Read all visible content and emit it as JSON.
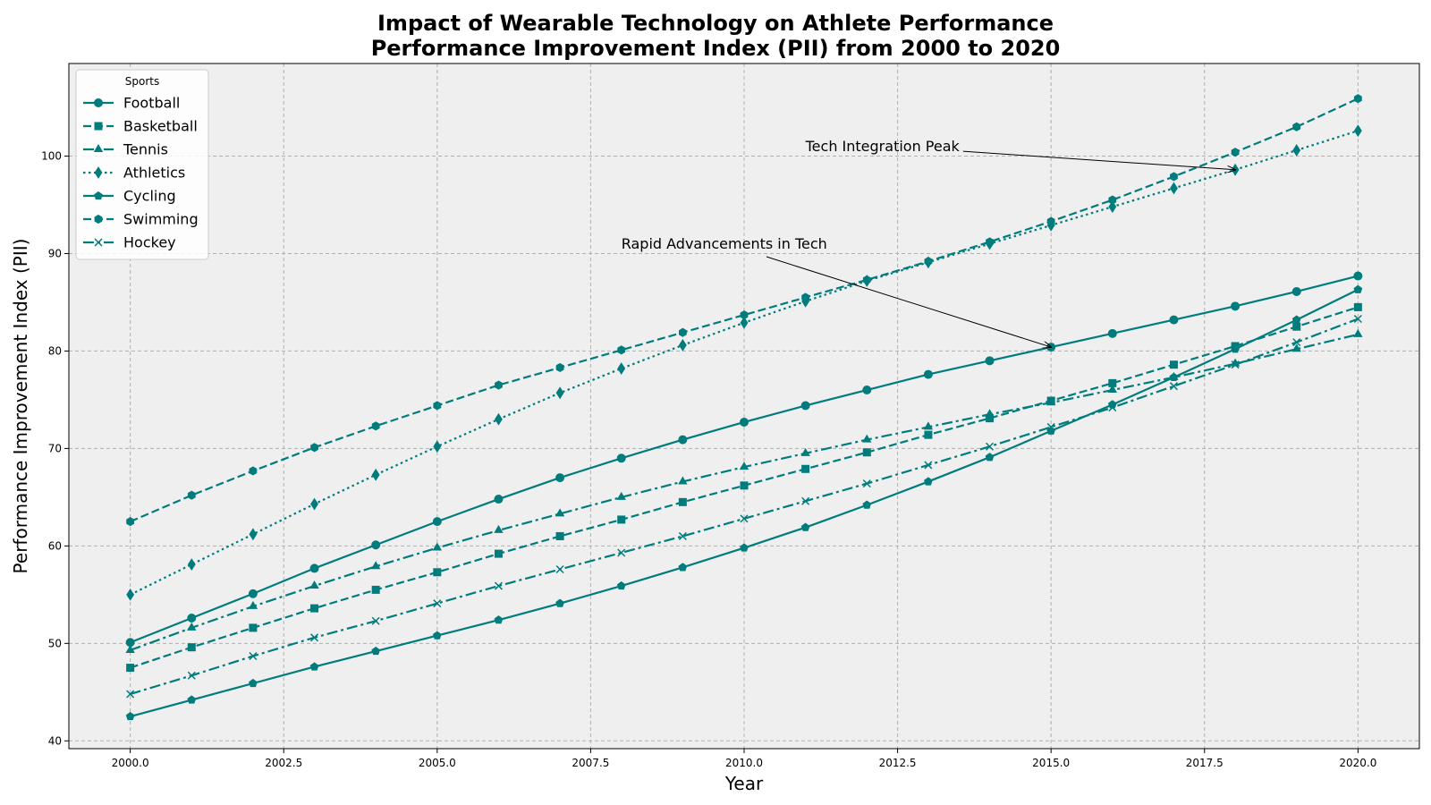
{
  "chart_data": {
    "type": "line",
    "title": "Impact of Wearable Technology on Athlete Performance",
    "subtitle": "Performance Improvement Index (PII) from 2000 to 2020",
    "xlabel": "Year",
    "ylabel": "Performance Improvement Index (PII)",
    "xlim": [
      1999.0,
      2021.0
    ],
    "ylim": [
      39.2,
      109.5
    ],
    "xticks": [
      2000.0,
      2002.5,
      2005.0,
      2007.5,
      2010.0,
      2012.5,
      2015.0,
      2017.5,
      2020.0
    ],
    "xtick_labels": [
      "2000.0",
      "2002.5",
      "2005.0",
      "2007.5",
      "2010.0",
      "2012.5",
      "2015.0",
      "2017.5",
      "2020.0"
    ],
    "yticks": [
      40,
      50,
      60,
      70,
      80,
      90,
      100
    ],
    "ytick_labels": [
      "40",
      "50",
      "60",
      "70",
      "80",
      "90",
      "100"
    ],
    "grid": true,
    "legend": {
      "title": "Sports",
      "placement": "upper-left"
    },
    "line_color": "#007c7c",
    "plot_bg": "#efefef",
    "x": [
      2000,
      2001,
      2002,
      2003,
      2004,
      2005,
      2006,
      2007,
      2008,
      2009,
      2010,
      2011,
      2012,
      2013,
      2014,
      2015,
      2016,
      2017,
      2018,
      2019,
      2020
    ],
    "series": [
      {
        "name": "Football",
        "marker": "circle",
        "dash": "solid",
        "values": [
          50.1,
          52.6,
          55.1,
          57.7,
          60.1,
          62.5,
          64.8,
          67.0,
          69.0,
          70.9,
          72.7,
          74.4,
          76.0,
          77.6,
          79.0,
          80.4,
          81.8,
          83.2,
          84.6,
          86.1,
          87.7
        ]
      },
      {
        "name": "Basketball",
        "marker": "square",
        "dash": "dashed",
        "values": [
          47.5,
          49.6,
          51.6,
          53.6,
          55.5,
          57.3,
          59.2,
          61.0,
          62.7,
          64.5,
          66.2,
          67.9,
          69.6,
          71.4,
          73.1,
          74.9,
          76.7,
          78.6,
          80.5,
          82.5,
          84.5
        ]
      },
      {
        "name": "Tennis",
        "marker": "triangle",
        "dash": "dashdot",
        "values": [
          49.3,
          51.6,
          53.8,
          55.9,
          57.9,
          59.8,
          61.6,
          63.3,
          65.0,
          66.6,
          68.1,
          69.5,
          70.9,
          72.2,
          73.5,
          74.7,
          76.0,
          77.3,
          78.7,
          80.2,
          81.7
        ]
      },
      {
        "name": "Athletics",
        "marker": "diamond",
        "dash": "dotted",
        "values": [
          55.0,
          58.1,
          61.2,
          64.3,
          67.3,
          70.2,
          73.0,
          75.7,
          78.2,
          80.6,
          82.9,
          85.1,
          87.2,
          89.1,
          91.0,
          92.9,
          94.8,
          96.7,
          98.6,
          100.6,
          102.6
        ]
      },
      {
        "name": "Cycling",
        "marker": "pentagon",
        "dash": "solid",
        "values": [
          42.5,
          44.2,
          45.9,
          47.6,
          49.2,
          50.8,
          52.4,
          54.1,
          55.9,
          57.8,
          59.8,
          61.9,
          64.2,
          66.6,
          69.1,
          71.8,
          74.5,
          77.3,
          80.2,
          83.2,
          86.3
        ]
      },
      {
        "name": "Swimming",
        "marker": "hexagon",
        "dash": "dashed",
        "values": [
          62.5,
          65.2,
          67.7,
          70.1,
          72.3,
          74.4,
          76.5,
          78.3,
          80.1,
          81.9,
          83.7,
          85.5,
          87.3,
          89.2,
          91.2,
          93.3,
          95.5,
          97.9,
          100.4,
          103.0,
          105.9
        ]
      },
      {
        "name": "Hockey",
        "marker": "x",
        "dash": "dashdot",
        "values": [
          44.8,
          46.7,
          48.7,
          50.6,
          52.3,
          54.1,
          55.9,
          57.6,
          59.3,
          61.0,
          62.8,
          64.6,
          66.4,
          68.3,
          70.2,
          72.2,
          74.2,
          76.4,
          78.6,
          80.9,
          83.3
        ]
      }
    ],
    "annotations": [
      {
        "text": "Tech Integration Peak",
        "text_x": 2011.0,
        "text_y": 100.5,
        "point_x": 2018.0,
        "point_y": 98.6
      },
      {
        "text": "Rapid Advancements in Tech",
        "text_x": 2008.0,
        "text_y": 90.5,
        "point_x": 2015.0,
        "point_y": 80.4
      }
    ]
  }
}
